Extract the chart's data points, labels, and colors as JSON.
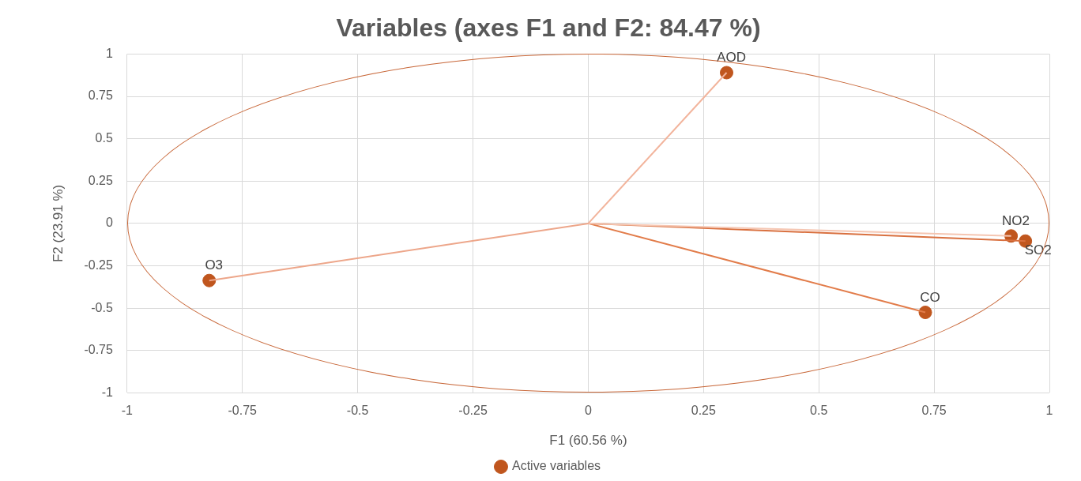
{
  "chart_data": {
    "type": "scatter",
    "title": "Variables (axes F1 and F2: 84.47 %)",
    "xlabel": "F1 (60.56 %)",
    "ylabel": "F2 (23.91 %)",
    "series": [
      {
        "type": "line",
        "color": "#f2b49c",
        "marker": "none",
        "x": [
          0,
          0.3
        ],
        "values": [
          0,
          0.89
        ]
      },
      {
        "type": "line",
        "color": "#f5c6b2",
        "marker": "none",
        "x": [
          0,
          0.917
        ],
        "values": [
          0,
          -0.074
        ]
      },
      {
        "type": "line",
        "color": "#d9703f",
        "marker": "none",
        "x": [
          0,
          0.948
        ],
        "values": [
          0,
          -0.104
        ]
      },
      {
        "type": "line",
        "color": "#e27c4a",
        "marker": "none",
        "x": [
          0,
          0.731
        ],
        "values": [
          0,
          -0.525
        ]
      },
      {
        "type": "line",
        "color": "#eda68a",
        "marker": "none",
        "x": [
          0,
          -0.822
        ],
        "values": [
          0,
          -0.337
        ]
      },
      {
        "type": "scatter",
        "name": "Active variables",
        "color": "#c0561e",
        "x": [
          0.3,
          0.917,
          0.948,
          0.731,
          -0.822
        ],
        "values": [
          0.89,
          -0.074,
          -0.104,
          -0.525,
          -0.337
        ]
      }
    ],
    "annotations": [
      {
        "text": "AOD",
        "x": 0.3,
        "y": 0.89
      },
      {
        "text": "NO2",
        "x": 0.917,
        "y": -0.074
      },
      {
        "text": "SO2",
        "x": 0.948,
        "y": -0.104
      },
      {
        "text": "CO",
        "x": 0.731,
        "y": -0.525
      },
      {
        "text": "O3",
        "x": -0.822,
        "y": -0.337
      }
    ],
    "xlim": [
      -1,
      1
    ],
    "xticks": [
      -1,
      -0.75,
      -0.5,
      -0.25,
      0,
      0.25,
      0.5,
      0.75,
      1
    ],
    "ylim": [
      -1,
      1
    ],
    "yticks": [
      -1,
      -0.75,
      -0.5,
      -0.25,
      0,
      0.25,
      0.5,
      0.75,
      1
    ],
    "grid": true,
    "legend": "bottom",
    "marker": "circle"
  }
}
